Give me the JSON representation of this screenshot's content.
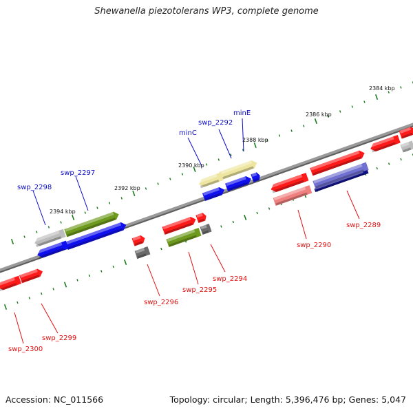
{
  "title": "Shewanella piezotolerans WP3, complete genome",
  "footer": {
    "accession": "Accession: NC_011566",
    "summary": "Topology: circular; Length: 5,396,476 bp; Genes: 5,047"
  },
  "ticks": [
    {
      "label": "2384 kbp"
    },
    {
      "label": "2386 kbp"
    },
    {
      "label": "2388 kbp"
    },
    {
      "label": "2390 kbp"
    },
    {
      "label": "2392 kbp"
    },
    {
      "label": "2394 kbp"
    }
  ],
  "genes": [
    {
      "name": "swp_2289",
      "color": "#e01010"
    },
    {
      "name": "swp_2290",
      "color": "#e01010"
    },
    {
      "name": "minE",
      "color": "#0b0bc8"
    },
    {
      "name": "swp_2292",
      "color": "#0b0bc8"
    },
    {
      "name": "minC",
      "color": "#0b0bc8"
    },
    {
      "name": "swp_2294",
      "color": "#e01010"
    },
    {
      "name": "swp_2295",
      "color": "#e01010"
    },
    {
      "name": "swp_2296",
      "color": "#e01010"
    },
    {
      "name": "swp_2297",
      "color": "#0b0bc8"
    },
    {
      "name": "swp_2298",
      "color": "#0b0bc8"
    },
    {
      "name": "swp_2299",
      "color": "#e01010"
    },
    {
      "name": "swp_2300",
      "color": "#e01010"
    }
  ],
  "colors": {
    "backbone": "#8a8a8a",
    "tick": "#1a7a1a",
    "red_feature": "#ff1a1a",
    "blue_feature": "#1010ee",
    "olive_feature": "#6e9a1e",
    "yellow_feature": "#eee6a0",
    "gray_feature": "#bdbdbd",
    "darkgray_feature": "#6a6a6a",
    "pink_feature": "#f08080",
    "violet_feature": "#7070d0",
    "navy_feature": "#101080"
  }
}
